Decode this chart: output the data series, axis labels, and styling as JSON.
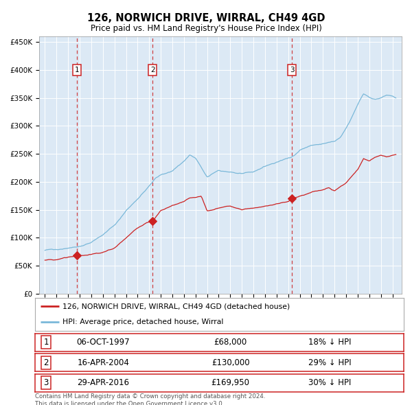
{
  "title": "126, NORWICH DRIVE, WIRRAL, CH49 4GD",
  "subtitle": "Price paid vs. HM Land Registry's House Price Index (HPI)",
  "background_color": "#dce9f5",
  "plot_bg_color": "#dce9f5",
  "hpi_color": "#7ab8d9",
  "price_color": "#cc2222",
  "ylim": [
    0,
    460000
  ],
  "yticks": [
    0,
    50000,
    100000,
    150000,
    200000,
    250000,
    300000,
    350000,
    400000,
    450000
  ],
  "xlim_start": 1994.5,
  "xlim_end": 2025.8,
  "purchases": [
    {
      "num": 1,
      "date": "06-OCT-1997",
      "year": 1997.77,
      "price": 68000,
      "hpi_pct": "18% ↓ HPI"
    },
    {
      "num": 2,
      "date": "16-APR-2004",
      "year": 2004.29,
      "price": 130000,
      "hpi_pct": "29% ↓ HPI"
    },
    {
      "num": 3,
      "date": "29-APR-2016",
      "year": 2016.33,
      "price": 169950,
      "hpi_pct": "30% ↓ HPI"
    }
  ],
  "legend_label_price": "126, NORWICH DRIVE, WIRRAL, CH49 4GD (detached house)",
  "legend_label_hpi": "HPI: Average price, detached house, Wirral",
  "footer": "Contains HM Land Registry data © Crown copyright and database right 2024.\nThis data is licensed under the Open Government Licence v3.0.",
  "hpi_anchors": [
    [
      1995.0,
      77000
    ],
    [
      1996.0,
      80000
    ],
    [
      1997.0,
      82000
    ],
    [
      1998.0,
      85000
    ],
    [
      1999.0,
      92000
    ],
    [
      2000.0,
      105000
    ],
    [
      2001.0,
      122000
    ],
    [
      2002.0,
      148000
    ],
    [
      2003.0,
      170000
    ],
    [
      2004.0,
      192000
    ],
    [
      2004.5,
      205000
    ],
    [
      2005.0,
      212000
    ],
    [
      2006.0,
      220000
    ],
    [
      2007.0,
      237000
    ],
    [
      2007.5,
      248000
    ],
    [
      2008.0,
      242000
    ],
    [
      2009.0,
      208000
    ],
    [
      2010.0,
      220000
    ],
    [
      2011.0,
      218000
    ],
    [
      2012.0,
      213000
    ],
    [
      2013.0,
      218000
    ],
    [
      2014.0,
      228000
    ],
    [
      2015.0,
      235000
    ],
    [
      2016.0,
      242000
    ],
    [
      2016.5,
      248000
    ],
    [
      2017.0,
      257000
    ],
    [
      2018.0,
      265000
    ],
    [
      2019.0,
      268000
    ],
    [
      2020.0,
      272000
    ],
    [
      2020.5,
      278000
    ],
    [
      2021.0,
      295000
    ],
    [
      2021.5,
      315000
    ],
    [
      2022.0,
      338000
    ],
    [
      2022.5,
      358000
    ],
    [
      2023.0,
      352000
    ],
    [
      2023.5,
      348000
    ],
    [
      2024.0,
      350000
    ],
    [
      2024.5,
      355000
    ],
    [
      2025.0,
      353000
    ],
    [
      2025.3,
      350000
    ]
  ],
  "price_anchors": [
    [
      1995.0,
      59000
    ],
    [
      1996.0,
      61000
    ],
    [
      1996.5,
      63000
    ],
    [
      1997.0,
      65000
    ],
    [
      1997.77,
      68000
    ],
    [
      1998.5,
      68500
    ],
    [
      1999.0,
      69000
    ],
    [
      2000.0,
      74000
    ],
    [
      2001.0,
      82000
    ],
    [
      2002.0,
      100000
    ],
    [
      2003.0,
      118000
    ],
    [
      2004.0,
      128000
    ],
    [
      2004.29,
      130000
    ],
    [
      2005.0,
      148000
    ],
    [
      2005.5,
      153000
    ],
    [
      2006.0,
      158000
    ],
    [
      2007.0,
      165000
    ],
    [
      2007.5,
      172000
    ],
    [
      2008.0,
      173000
    ],
    [
      2008.5,
      175000
    ],
    [
      2009.0,
      148000
    ],
    [
      2009.5,
      150000
    ],
    [
      2010.0,
      153000
    ],
    [
      2011.0,
      157000
    ],
    [
      2012.0,
      150000
    ],
    [
      2013.0,
      153000
    ],
    [
      2014.0,
      156000
    ],
    [
      2015.0,
      160000
    ],
    [
      2015.5,
      162000
    ],
    [
      2016.0,
      164000
    ],
    [
      2016.33,
      169950
    ],
    [
      2017.0,
      175000
    ],
    [
      2018.0,
      181000
    ],
    [
      2019.0,
      186000
    ],
    [
      2019.5,
      190000
    ],
    [
      2020.0,
      184000
    ],
    [
      2021.0,
      198000
    ],
    [
      2022.0,
      222000
    ],
    [
      2022.5,
      242000
    ],
    [
      2023.0,
      237000
    ],
    [
      2023.5,
      244000
    ],
    [
      2024.0,
      248000
    ],
    [
      2024.5,
      245000
    ],
    [
      2025.3,
      248000
    ]
  ]
}
